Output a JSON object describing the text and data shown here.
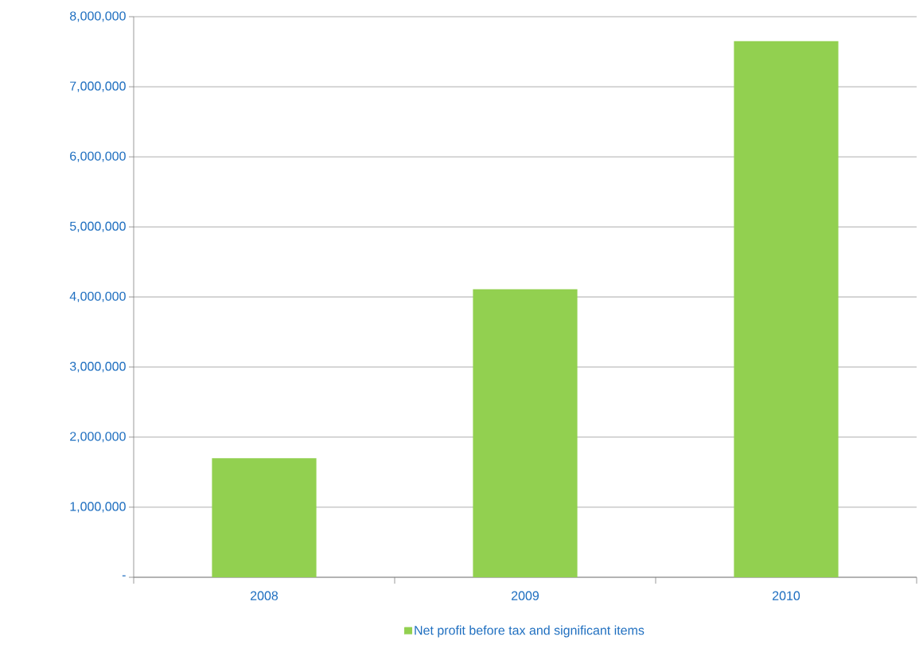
{
  "chart_data": {
    "type": "bar",
    "categories": [
      "2008",
      "2009",
      "2010"
    ],
    "series": [
      {
        "name": "Net profit before tax and significant items",
        "color": "#92d050",
        "values": [
          1700000,
          4110000,
          7650000
        ]
      }
    ],
    "ylim": [
      0,
      8000000
    ],
    "yticks": [
      {
        "value": 0,
        "label": "-"
      },
      {
        "value": 1000000,
        "label": "1,000,000"
      },
      {
        "value": 2000000,
        "label": "2,000,000"
      },
      {
        "value": 3000000,
        "label": "3,000,000"
      },
      {
        "value": 4000000,
        "label": "4,000,000"
      },
      {
        "value": 5000000,
        "label": "5,000,000"
      },
      {
        "value": 6000000,
        "label": "6,000,000"
      },
      {
        "value": 7000000,
        "label": "7,000,000"
      },
      {
        "value": 8000000,
        "label": "8,000,000"
      }
    ],
    "grid": "y",
    "legend": "bottom"
  }
}
